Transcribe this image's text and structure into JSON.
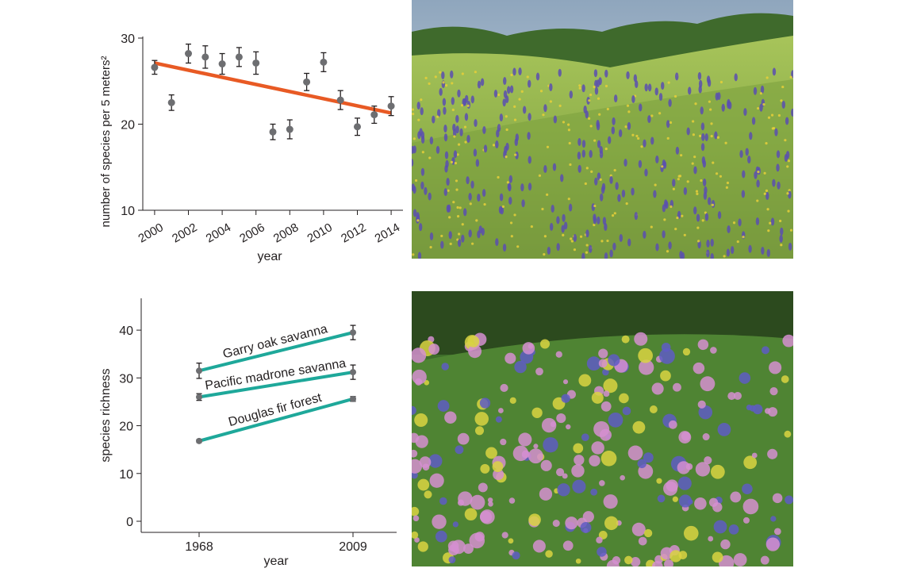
{
  "chart_data": [
    {
      "type": "scatter",
      "title": "",
      "xlabel": "year",
      "ylabel": "number of species per 5 meters²",
      "ylim": [
        10,
        30
      ],
      "xlim": [
        1999.3,
        2014.7
      ],
      "yticks": [
        10,
        20,
        30
      ],
      "xticks": [
        2000,
        2002,
        2004,
        2006,
        2008,
        2010,
        2012,
        2014
      ],
      "grid": false,
      "x": [
        2000,
        2001,
        2002,
        2003,
        2004,
        2005,
        2006,
        2007,
        2008,
        2009,
        2010,
        2011,
        2012,
        2013,
        2014
      ],
      "y": [
        26.6,
        22.5,
        28.2,
        27.8,
        27.0,
        27.8,
        27.1,
        19.1,
        19.4,
        24.9,
        27.2,
        22.8,
        19.7,
        21.1,
        22.1
      ],
      "error": [
        0.8,
        0.9,
        1.1,
        1.3,
        1.2,
        1.1,
        1.3,
        0.9,
        1.1,
        1.0,
        1.1,
        1.1,
        1.0,
        1.0,
        1.1
      ],
      "trend": {
        "x": [
          2000,
          2014
        ],
        "y": [
          27.1,
          21.3
        ],
        "color": "#e85a24"
      },
      "point_color": "#6d6e71"
    },
    {
      "type": "line",
      "title": "",
      "xlabel": "year",
      "ylabel": "species richness",
      "categories": [
        "1968",
        "2009"
      ],
      "ylim": [
        0,
        45
      ],
      "yticks": [
        0,
        10,
        20,
        30,
        40
      ],
      "grid": false,
      "line_color": "#1ea89a",
      "series": [
        {
          "name": "Garry oak savanna",
          "values": [
            31.5,
            39.5
          ],
          "error": [
            1.6,
            1.5
          ]
        },
        {
          "name": "Pacific madrone savanna",
          "values": [
            26.0,
            31.2
          ],
          "error": [
            0.7,
            1.5
          ]
        },
        {
          "name": "Douglas fir forest",
          "values": [
            16.8,
            25.6
          ],
          "error": [
            0.3,
            0.5
          ]
        }
      ]
    }
  ],
  "photos": [
    {
      "name": "grassland wildflower meadow with purple flowers and oak trees"
    },
    {
      "name": "close-up of blue camas and pink wildflowers"
    }
  ]
}
